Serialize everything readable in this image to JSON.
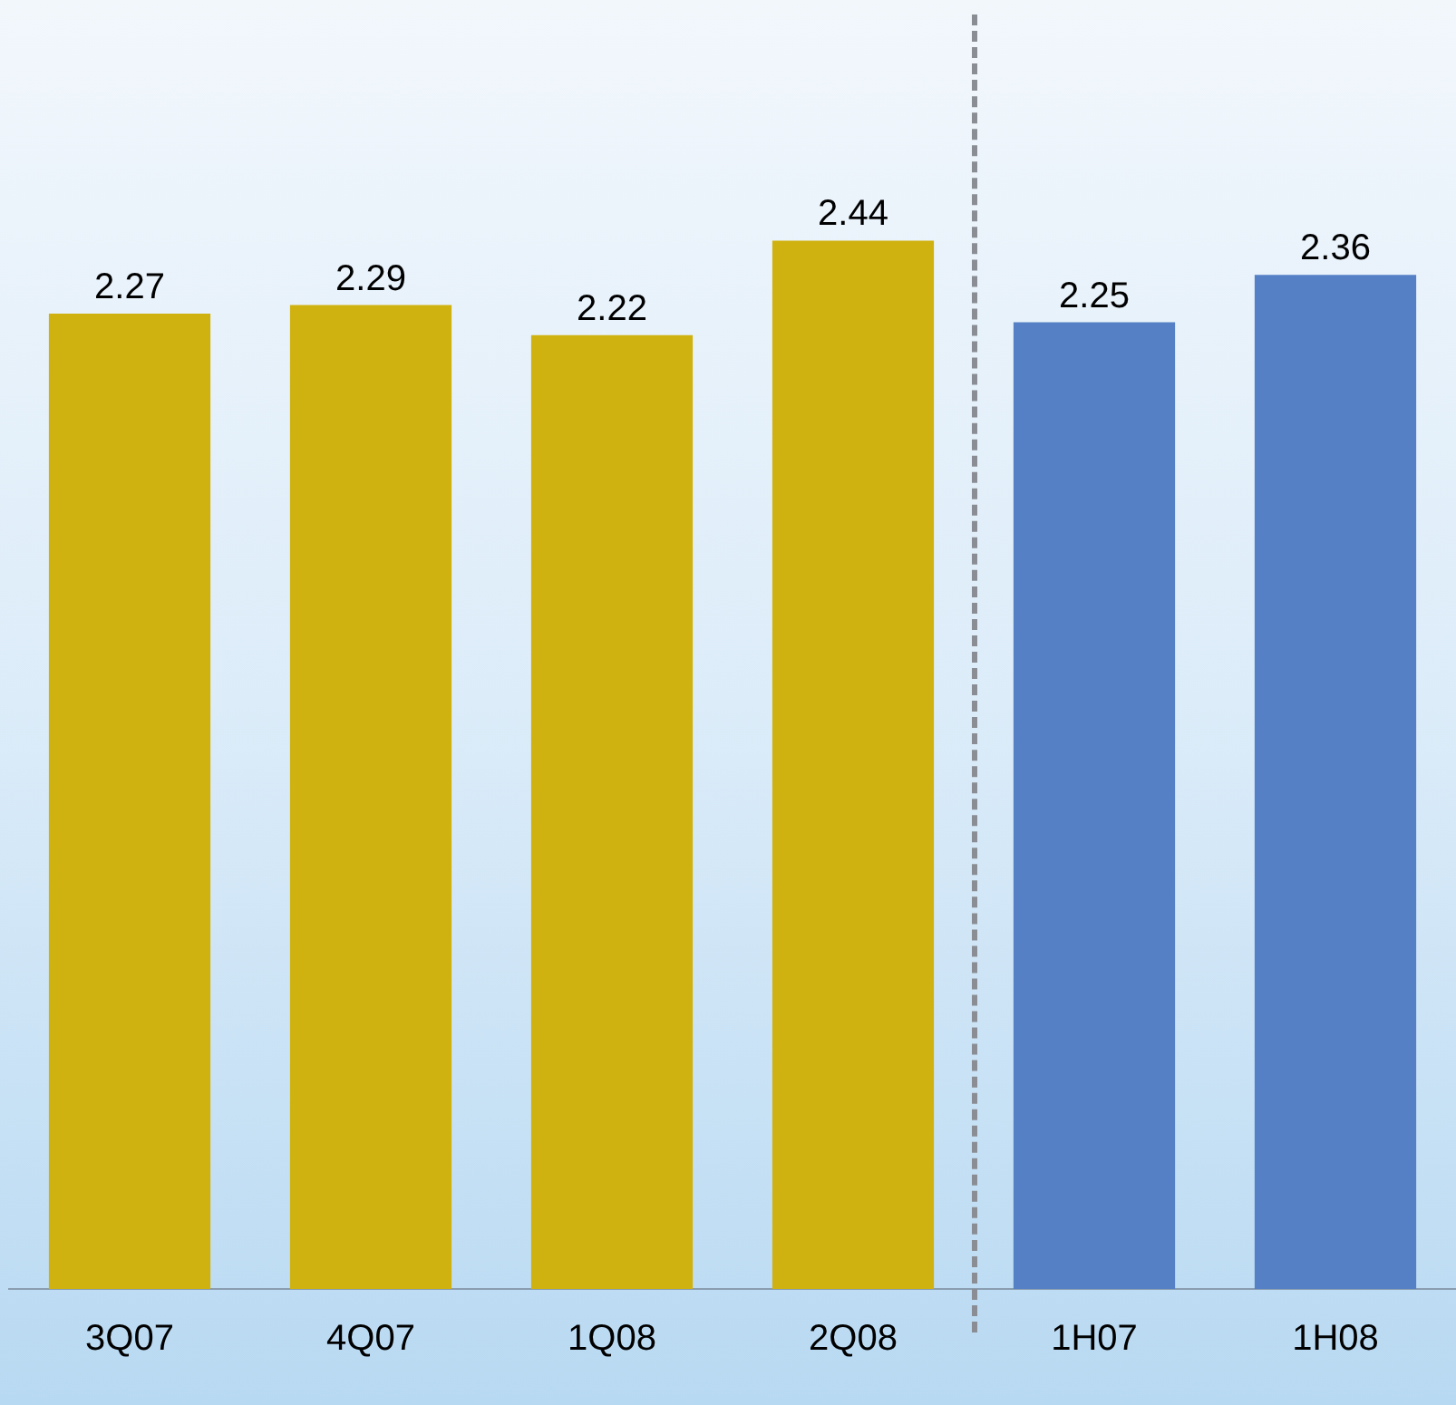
{
  "chart_data": {
    "type": "bar",
    "categories": [
      "3Q07",
      "4Q07",
      "1Q08",
      "2Q08",
      "1H07",
      "1H08"
    ],
    "values": [
      2.27,
      2.29,
      2.22,
      2.44,
      2.25,
      2.36
    ],
    "colors": [
      "#cfb20f",
      "#cfb20f",
      "#cfb20f",
      "#cfb20f",
      "#5580c6",
      "#5580c6"
    ],
    "tick_labels": "x",
    "data_labels": true,
    "grid": false,
    "legend": false
  }
}
